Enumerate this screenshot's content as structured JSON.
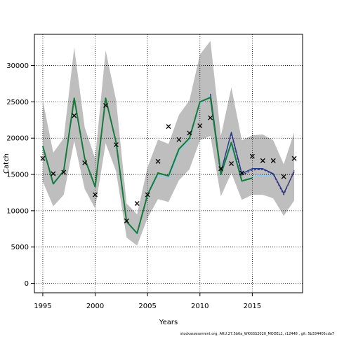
{
  "chart_data": {
    "type": "line",
    "xlabel": "Years",
    "ylabel": "Catch",
    "xlim": [
      1994.2,
      2019.8
    ],
    "ylim": [
      -1300,
      34300
    ],
    "xticks": [
      1995,
      2000,
      2005,
      2010,
      2015
    ],
    "yticks": [
      0,
      5000,
      10000,
      15000,
      20000,
      25000,
      30000
    ],
    "xtick_labels": [
      "1995",
      "2000",
      "2005",
      "2010",
      "2015"
    ],
    "ytick_labels": [
      "0",
      "5000",
      "10000",
      "15000",
      "20000",
      "25000",
      "30000"
    ],
    "grid": "dotted",
    "footnote": "stockassessment.org, ARU.27.5b6a_WKGSS2020_MODEL1, r12448 , git: 5b334405cda7",
    "band": {
      "color": "#bebebe",
      "x": [
        1995,
        1996,
        1997,
        1998,
        1999,
        2000,
        2001,
        2002,
        2003,
        2004,
        2005,
        2006,
        2007,
        2008,
        2009,
        2010,
        2011,
        2012,
        2013,
        2014,
        2015,
        2016,
        2017,
        2018,
        2019
      ],
      "upper": [
        25200,
        18000,
        20000,
        32500,
        21500,
        17200,
        32100,
        25200,
        11000,
        9500,
        16000,
        19800,
        19200,
        23200,
        25200,
        31500,
        33400,
        20300,
        27000,
        19700,
        20400,
        20500,
        19700,
        16400,
        20800
      ],
      "lower": [
        14000,
        10600,
        12200,
        19600,
        13000,
        10300,
        19300,
        15400,
        6300,
        5200,
        9000,
        11600,
        11200,
        14200,
        15700,
        19700,
        20300,
        12000,
        15200,
        11500,
        12200,
        12200,
        11700,
        9300,
        11400
      ]
    },
    "series": [
      {
        "color": "#87ceeb",
        "width": 1.2,
        "x": [
          1995,
          1996,
          1997,
          1998,
          1999,
          2000,
          2001,
          2002,
          2003,
          2004,
          2005,
          2006,
          2007,
          2008,
          2009,
          2010,
          2011,
          2012,
          2013,
          2014,
          2015,
          2016,
          2017
        ],
        "values": [
          18600,
          13600,
          15400,
          25300,
          17100,
          13200,
          25300,
          19300,
          8400,
          6800,
          12100,
          14900,
          14400,
          18100,
          19700,
          24700,
          25800,
          14900,
          19000,
          14000,
          14700,
          14900,
          14800
        ]
      },
      {
        "color": "#1e3a8a",
        "width": 1.4,
        "x": [
          2011,
          2012,
          2013,
          2014,
          2015,
          2016,
          2017,
          2018,
          2019
        ],
        "values": [
          26100,
          15300,
          20800,
          15100,
          15800,
          15800,
          15100,
          12400,
          15400
        ]
      },
      {
        "color": "#3a2a7a",
        "width": 1.3,
        "dash": "3,2",
        "x": [
          2013,
          2014,
          2015,
          2016,
          2017,
          2018,
          2019
        ],
        "values": [
          20600,
          14900,
          15600,
          15700,
          15000,
          12200,
          15500
        ]
      },
      {
        "color": "#555555",
        "width": 1,
        "dash": "3,3",
        "x": [
          2018,
          2019
        ],
        "values": [
          12300,
          15600
        ]
      },
      {
        "color": "#157a3a",
        "width": 2,
        "x": [
          1995,
          1996,
          1997,
          1998,
          1999,
          2000,
          2001,
          2002,
          2003,
          2004,
          2005,
          2006,
          2007,
          2008,
          2009,
          2010,
          2011,
          2012,
          2013,
          2014,
          2015
        ],
        "values": [
          18900,
          13700,
          15500,
          25500,
          17200,
          13300,
          25500,
          19400,
          8500,
          6900,
          12200,
          15200,
          14800,
          18500,
          20000,
          25000,
          25600,
          15000,
          19400,
          14100,
          14500
        ]
      }
    ],
    "observations": {
      "marker": "x",
      "x": [
        1995,
        1996,
        1997,
        1998,
        1999,
        2000,
        2001,
        2002,
        2003,
        2004,
        2005,
        2006,
        2007,
        2008,
        2009,
        2010,
        2011,
        2012,
        2013,
        2014,
        2015,
        2016,
        2017,
        2018,
        2019
      ],
      "values": [
        17200,
        15100,
        15300,
        23100,
        16600,
        12200,
        24500,
        19100,
        8600,
        11000,
        12200,
        16800,
        21600,
        19800,
        20700,
        21700,
        22800,
        15800,
        16500,
        15200,
        17500,
        16900,
        16900,
        14700,
        17200
      ]
    }
  }
}
